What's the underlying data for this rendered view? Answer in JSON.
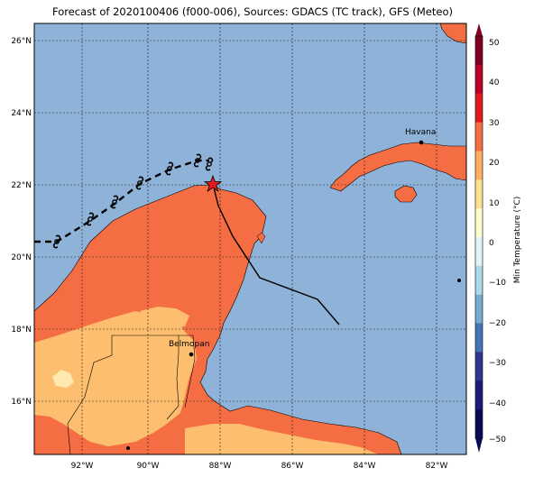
{
  "title": "Forecast of 2020100406 (f000-006), Sources: GDACS (TC track), GFS (Meteo)",
  "latitude_labels": [
    "26°N",
    "24°N",
    "22°N",
    "20°N",
    "18°N",
    "16°N"
  ],
  "longitude_labels": [
    "92°W",
    "90°W",
    "88°W",
    "86°W",
    "84°W",
    "82°W"
  ],
  "cities": [
    {
      "name": "Havana",
      "lat": 23.13,
      "lon": -82.38
    },
    {
      "name": "Belmopan",
      "lat": 17.25,
      "lon": -88.77
    }
  ],
  "storm_symbol": "hurricane-icon",
  "current_position_symbol": "star-icon",
  "colorbar": {
    "label": "Min Temperature (°C)",
    "ticks": [
      "50",
      "40",
      "30",
      "20",
      "10",
      "0",
      "−10",
      "−20",
      "−30",
      "−40",
      "−50"
    ],
    "colors": [
      "#800026",
      "#bd0026",
      "#e31a1c",
      "#f46d43",
      "#fdae61",
      "#fee090",
      "#ffffcc",
      "#e0f3f8",
      "#abd9e9",
      "#74add1",
      "#4575b4",
      "#313695",
      "#1f1a7a",
      "#0b0b55"
    ]
  },
  "colors": {
    "ocean": "#8fb2d8",
    "land_warm": "#f46d43",
    "land_mild": "#fdbf6f",
    "land_cool": "#ffe9b0"
  }
}
